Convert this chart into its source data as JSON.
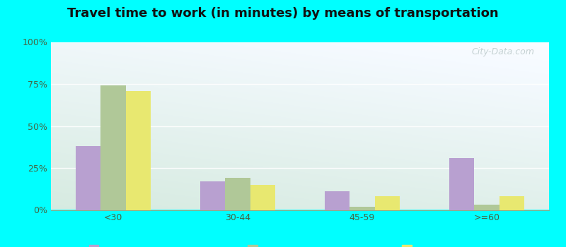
{
  "title": "Travel time to work (in minutes) by means of transportation",
  "categories": [
    "<30",
    "30-44",
    "45-59",
    ">=60"
  ],
  "series": {
    "Public transportation - Indiana": [
      38,
      17,
      11,
      31
    ],
    "Other means - Leo-Cedarville": [
      74,
      19,
      2,
      3
    ],
    "Other means - Indiana": [
      71,
      15,
      8,
      8
    ]
  },
  "colors": {
    "Public transportation - Indiana": "#b8a0d0",
    "Other means - Leo-Cedarville": "#b0c898",
    "Other means - Indiana": "#e8e870"
  },
  "ylim": [
    0,
    100
  ],
  "yticks": [
    0,
    25,
    50,
    75,
    100
  ],
  "ytick_labels": [
    "0%",
    "25%",
    "50%",
    "75%",
    "100%"
  ],
  "background_color": "#00ffff",
  "watermark": "City-Data.com",
  "bar_width": 0.2,
  "title_fontsize": 13
}
